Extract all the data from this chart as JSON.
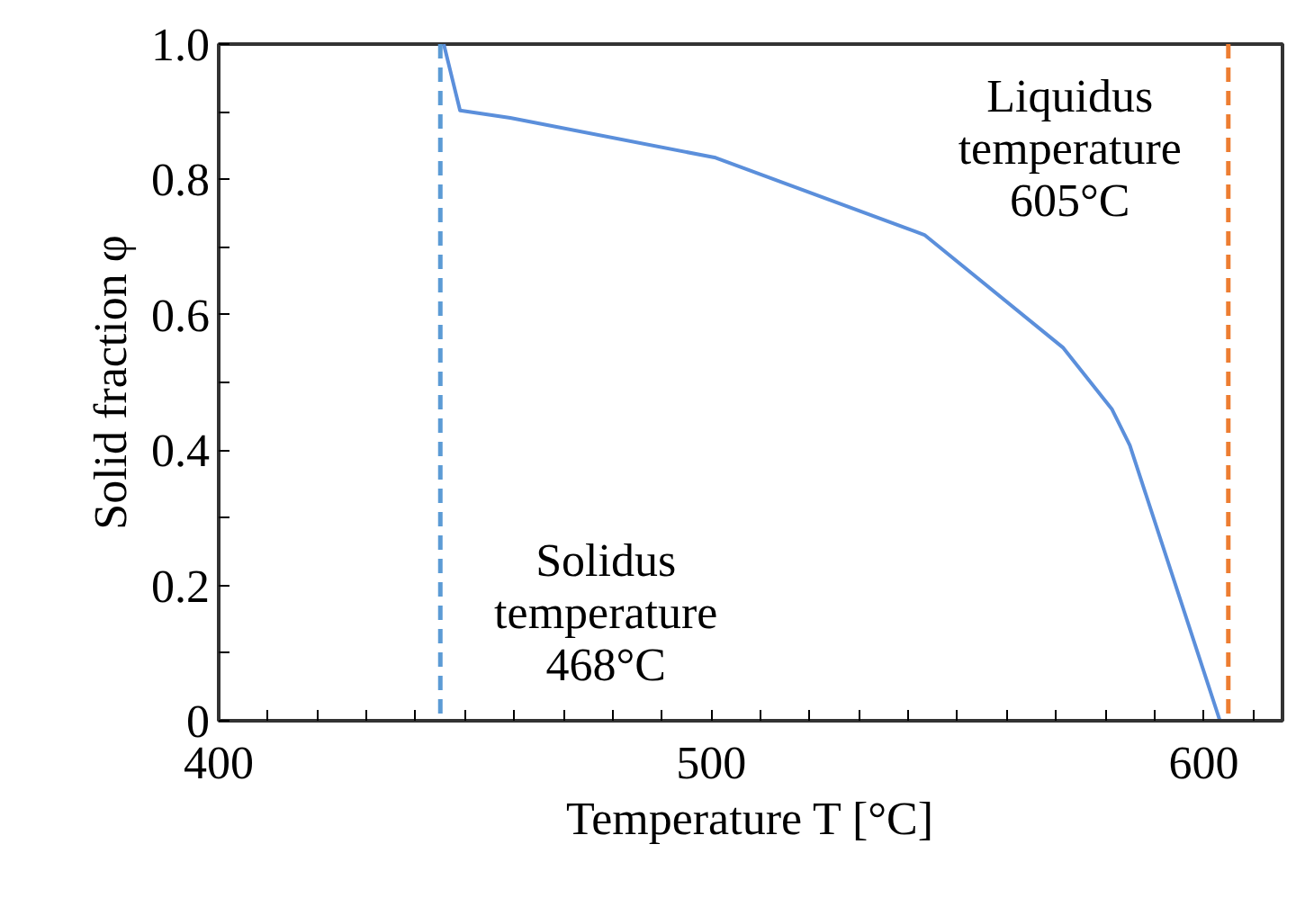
{
  "chart_data": {
    "type": "line",
    "xlabel": "Temperature T [°C]",
    "ylabel": "Solid fraction φ",
    "x": [
      445.7,
      449.0,
      459.2,
      500.9,
      543.3,
      571.5,
      581.4,
      585.0,
      603.3
    ],
    "series": [
      {
        "color": "#5b8fdb",
        "values": [
          1.0,
          0.902,
          0.891,
          0.832,
          0.718,
          0.551,
          0.46,
          0.407,
          0.0
        ]
      }
    ],
    "xlim": [
      400,
      616
    ],
    "xticks": [
      400,
      {
        "value": 410,
        "label": null
      },
      {
        "value": 420,
        "label": null
      },
      {
        "value": 430,
        "label": null
      },
      {
        "value": 440,
        "label": null
      },
      {
        "value": 450,
        "label": null
      },
      {
        "value": 460,
        "label": null
      },
      {
        "value": 470,
        "label": null
      },
      {
        "value": 480,
        "label": null
      },
      {
        "value": 490,
        "label": null
      },
      500,
      {
        "value": 510,
        "label": null
      },
      {
        "value": 520,
        "label": null
      },
      {
        "value": 530,
        "label": null
      },
      {
        "value": 540,
        "label": null
      },
      {
        "value": 550,
        "label": null
      },
      {
        "value": 560,
        "label": null
      },
      {
        "value": 570,
        "label": null
      },
      {
        "value": 580,
        "label": null
      },
      {
        "value": 590,
        "label": null
      },
      600,
      {
        "value": 610,
        "label": null
      }
    ],
    "ylim": [
      0,
      1
    ],
    "yticks": [
      0,
      {
        "value": 0.1,
        "label": null
      },
      {
        "value": 0.2,
        "label": "0.2"
      },
      {
        "value": 0.3,
        "label": null
      },
      {
        "value": 0.4,
        "label": "0.4"
      },
      {
        "value": 0.5,
        "label": null
      },
      {
        "value": 0.6,
        "label": "0.6"
      },
      {
        "value": 0.7,
        "label": null
      },
      {
        "value": 0.8,
        "label": "0.8"
      },
      {
        "value": 0.9,
        "label": null
      },
      {
        "value": 1,
        "label": "1.0"
      }
    ],
    "ref_lines": [
      {
        "axis": "x",
        "value": 445,
        "color": "#5b9bd5",
        "line_style": "dashed",
        "label": "Solidus\ntemperature\n468°C"
      },
      {
        "axis": "x",
        "value": 605,
        "color": "#ed7d31",
        "line_style": "dashed",
        "label": "Liquidus\ntemperature\n605°C"
      }
    ],
    "marker": "none",
    "line_style": "solid"
  }
}
